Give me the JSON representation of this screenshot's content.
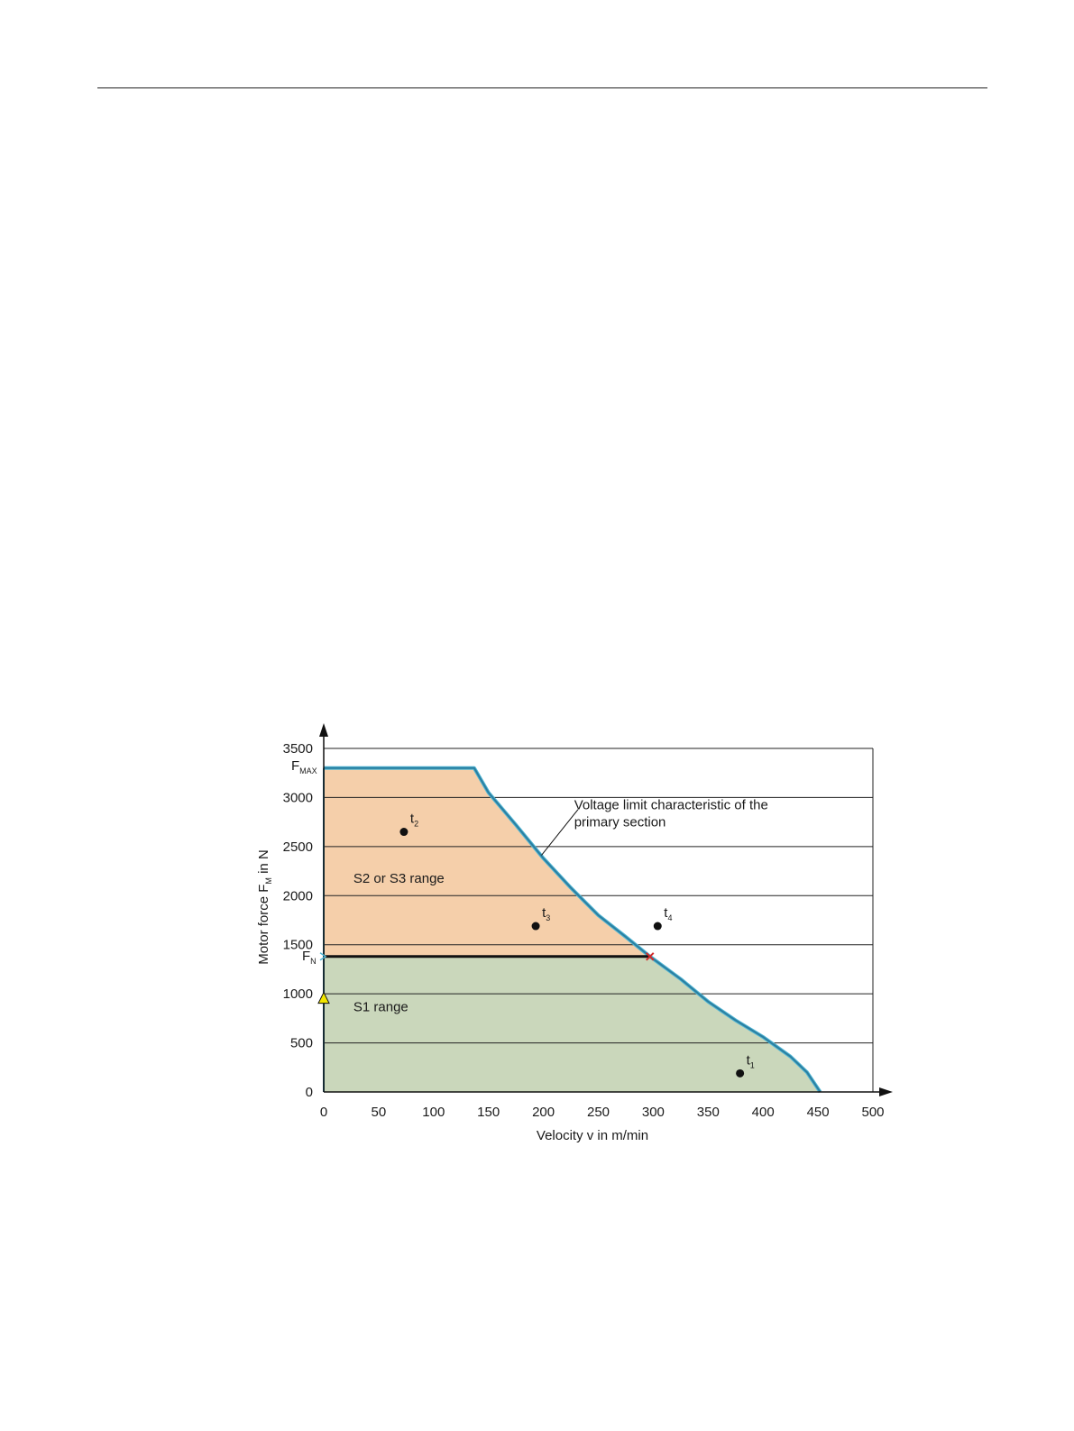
{
  "chart_data": {
    "type": "area",
    "xlabel": "Velocity v in m/min",
    "ylabel": "Motor force F",
    "ylabel_sub": "M",
    "ylabel_suffix": " in N",
    "xlim": [
      0,
      500
    ],
    "ylim": [
      0,
      3500
    ],
    "xticks": [
      0,
      50,
      100,
      150,
      200,
      250,
      300,
      350,
      400,
      450,
      500
    ],
    "yticks": [
      0,
      500,
      1000,
      1500,
      2000,
      2500,
      3000,
      3500
    ],
    "grid": "horizontal",
    "special_ticks": [
      {
        "base": "F",
        "sub": "MAX",
        "value": 3300
      },
      {
        "base": "F",
        "sub": "N",
        "value": 1380
      }
    ],
    "fmax": 3300,
    "fn": 1380,
    "voltage_limit_curve": [
      [
        0,
        3300
      ],
      [
        137,
        3300
      ],
      [
        150,
        3050
      ],
      [
        175,
        2720
      ],
      [
        200,
        2380
      ],
      [
        225,
        2080
      ],
      [
        250,
        1800
      ],
      [
        275,
        1580
      ],
      [
        297,
        1380
      ],
      [
        325,
        1150
      ],
      [
        350,
        920
      ],
      [
        375,
        730
      ],
      [
        400,
        560
      ],
      [
        425,
        360
      ],
      [
        440,
        200
      ],
      [
        452,
        0
      ]
    ],
    "regions": [
      {
        "name": "S2 or S3 range",
        "color": "#f5cfaa",
        "label_at": [
          27,
          2130
        ]
      },
      {
        "name": "S1 range",
        "color": "#cad7bb",
        "label_at": [
          27,
          820
        ]
      }
    ],
    "points": [
      {
        "base": "t",
        "sub": "2",
        "x": 73,
        "y": 2650
      },
      {
        "base": "t",
        "sub": "3",
        "x": 193,
        "y": 1690
      },
      {
        "base": "t",
        "sub": "4",
        "x": 304,
        "y": 1690
      },
      {
        "base": "t",
        "sub": "1",
        "x": 379,
        "y": 190
      }
    ],
    "annotation": {
      "lines": [
        "Voltage limit characteristic of the",
        "primary section"
      ],
      "text_at": [
        228,
        2880
      ],
      "pointer_from": [
        225,
        2750
      ],
      "pointer_to": [
        195,
        2430
      ]
    },
    "colors": {
      "curve": "#2b7ea0",
      "curve_light": "#4fb5d3",
      "fn_line": "#111111",
      "grid": "#222222",
      "marker_cross": "#d42a2a",
      "marker_triangle": "#f2e600",
      "fn_marker": "#4fb5d3"
    },
    "marker_triangle_value": 950,
    "marker_cross_at": [
      297,
      1380
    ]
  }
}
